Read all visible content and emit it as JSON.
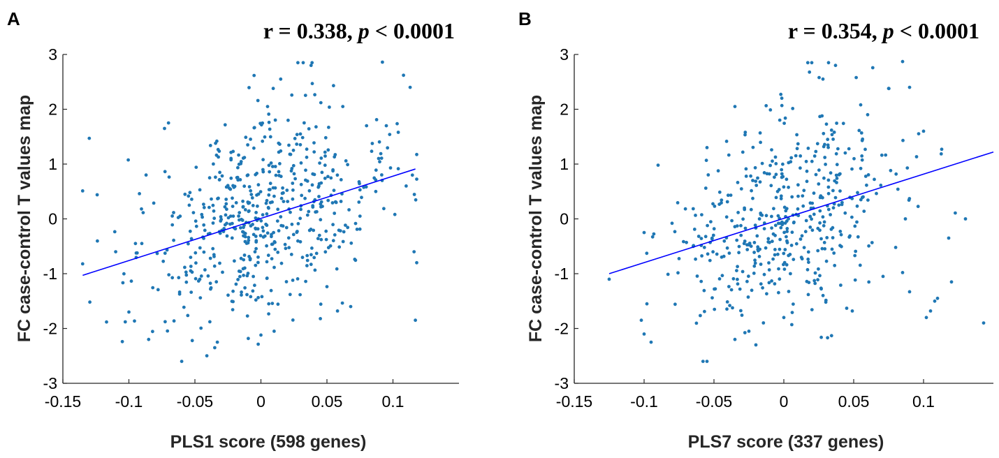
{
  "chart_data": [
    {
      "type": "scatter",
      "panel_label": "A",
      "stat_r": "r = 0.338, ",
      "stat_p_symbol": "p",
      "stat_p_rest": " < 0.0001",
      "xlabel": "PLS1 score (598 genes)",
      "ylabel": "FC case-control T values map",
      "xlim": [
        -0.15,
        0.15
      ],
      "ylim": [
        -3,
        3
      ],
      "xticks": [
        -0.15,
        -0.1,
        -0.05,
        0,
        0.05,
        0.1
      ],
      "xtick_labels": [
        "-0.15",
        "-0.1",
        "-0.05",
        "0",
        "0.05",
        "0.1"
      ],
      "yticks": [
        -3,
        -2,
        -1,
        0,
        1,
        2,
        3
      ],
      "ytick_labels": [
        "-3",
        "-2",
        "-1",
        "0",
        "1",
        "2",
        "3"
      ],
      "fit_line": {
        "x": [
          -0.135,
          0.117
        ],
        "y": [
          -1.03,
          0.91
        ]
      },
      "point_color": "#1f77b4",
      "line_color": "#0000ff",
      "n_points": 598,
      "points_seed": 12345,
      "slope": 7.7,
      "intercept": 0.01,
      "noise": 0.9,
      "x_spread": 0.045,
      "x_range": [
        -0.135,
        0.118
      ],
      "points": [
        [
          -0.13,
          1.47
        ],
        [
          -0.124,
          0.44
        ],
        [
          -0.135,
          -0.82
        ],
        [
          -0.105,
          -2.24
        ],
        [
          -0.085,
          -2.2
        ],
        [
          -0.06,
          -2.6
        ],
        [
          -0.07,
          1.75
        ],
        [
          -0.073,
          1.65
        ],
        [
          -0.092,
          0.46
        ],
        [
          -0.087,
          0.8
        ],
        [
          0.028,
          2.85
        ],
        [
          0.032,
          2.85
        ],
        [
          0.038,
          2.8
        ],
        [
          0.015,
          2.55
        ],
        [
          0.092,
          2.86
        ],
        [
          0.108,
          2.62
        ],
        [
          0.113,
          2.4
        ],
        [
          0.005,
          2.05
        ],
        [
          0.055,
          2.43
        ],
        [
          0.062,
          2.05
        ],
        [
          0.117,
          -1.85
        ],
        [
          0.116,
          -0.6
        ],
        [
          0.11,
          0.6
        ],
        [
          0.045,
          -1.82
        ],
        [
          0.068,
          -1.6
        ],
        [
          0.058,
          -1.68
        ],
        [
          0.01,
          -2.05
        ],
        [
          -0.033,
          -2.25
        ],
        [
          -0.035,
          -2.35
        ],
        [
          -0.052,
          -2.22
        ],
        [
          0.0,
          -2.12
        ],
        [
          0.08,
          1.7
        ],
        [
          0.075,
          0.05
        ],
        [
          -0.1,
          -1.7
        ],
        [
          -0.095,
          -0.45
        ],
        [
          -0.11,
          -0.6
        ],
        [
          0.095,
          1.7
        ],
        [
          0.104,
          1.58
        ],
        [
          0.087,
          0.5
        ],
        [
          -0.01,
          1.35
        ]
      ]
    },
    {
      "type": "scatter",
      "panel_label": "B",
      "stat_r": "r = 0.354, ",
      "stat_p_symbol": "p",
      "stat_p_rest": " < 0.0001",
      "xlabel": "PLS7 score (337 genes)",
      "ylabel": "FC case-control T values map",
      "xlim": [
        -0.15,
        0.15
      ],
      "ylim": [
        -3,
        3
      ],
      "xticks": [
        -0.15,
        -0.1,
        -0.05,
        0,
        0.05,
        0.1
      ],
      "xtick_labels": [
        "-0.15",
        "-0.1",
        "-0.05",
        "0",
        "0.05",
        "0.1"
      ],
      "yticks": [
        -3,
        -2,
        -1,
        0,
        1,
        2,
        3
      ],
      "ytick_labels": [
        "-3",
        "-2",
        "-1",
        "0",
        "1",
        "2",
        "3"
      ],
      "fit_line": {
        "x": [
          -0.125,
          0.15
        ],
        "y": [
          -1.0,
          1.22
        ]
      },
      "point_color": "#1f77b4",
      "line_color": "#0000ff",
      "n_points": 500,
      "points_seed": 67890,
      "slope": 8.0,
      "intercept": 0.0,
      "noise": 0.85,
      "x_spread": 0.04,
      "x_range": [
        -0.125,
        0.143
      ],
      "points": [
        [
          -0.125,
          -1.1
        ],
        [
          -0.102,
          -1.85
        ],
        [
          -0.1,
          -2.1
        ],
        [
          -0.095,
          -2.25
        ],
        [
          -0.098,
          -1.55
        ],
        [
          -0.09,
          0.98
        ],
        [
          -0.055,
          -2.6
        ],
        [
          -0.055,
          1.3
        ],
        [
          -0.035,
          2.05
        ],
        [
          0.02,
          2.85
        ],
        [
          0.028,
          2.55
        ],
        [
          0.032,
          2.85
        ],
        [
          0.037,
          2.8
        ],
        [
          0.085,
          2.87
        ],
        [
          0.09,
          2.4
        ],
        [
          0.075,
          2.38
        ],
        [
          0.1,
          1.6
        ],
        [
          0.113,
          1.27
        ],
        [
          0.118,
          -0.35
        ],
        [
          0.12,
          -1.15
        ],
        [
          0.11,
          -1.45
        ],
        [
          0.108,
          -1.5
        ],
        [
          0.102,
          -1.8
        ],
        [
          0.105,
          -1.68
        ],
        [
          0.143,
          -1.9
        ],
        [
          0.085,
          -0.98
        ],
        [
          0.09,
          -1.33
        ],
        [
          0.071,
          -1.05
        ],
        [
          0.045,
          -1.63
        ],
        [
          0.049,
          -1.68
        ],
        [
          -0.035,
          -2.2
        ],
        [
          -0.02,
          -2.3
        ],
        [
          -0.025,
          -2.05
        ],
        [
          0.0,
          -1.8
        ],
        [
          -0.1,
          -0.25
        ],
        [
          0.055,
          2.08
        ],
        [
          0.06,
          1.9
        ],
        [
          -0.08,
          -0.08
        ],
        [
          0.087,
          0.0
        ],
        [
          0.13,
          0.0
        ]
      ]
    }
  ]
}
